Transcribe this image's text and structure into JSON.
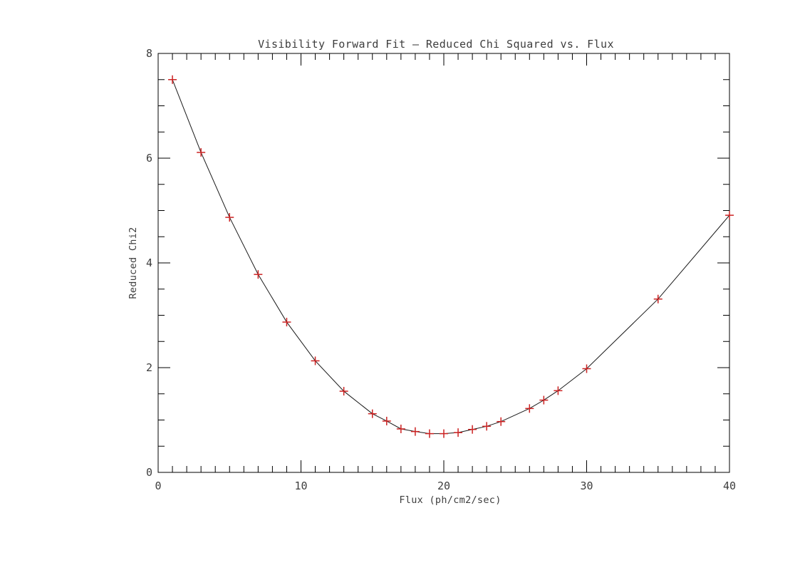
{
  "window": {
    "background_color": "#ffffff"
  },
  "chart_data": {
    "type": "line",
    "title": "Visibility Forward Fit — Reduced Chi Squared vs. Flux",
    "xlabel": "Flux (ph/cm2/sec)",
    "ylabel": "Reduced Chi2",
    "x": [
      1,
      3,
      5,
      7,
      9,
      11,
      13,
      15,
      16,
      17,
      18,
      19,
      20,
      21,
      22,
      23,
      24,
      26,
      27,
      28,
      30,
      35,
      40
    ],
    "y": [
      7.5,
      6.11,
      4.87,
      3.78,
      2.87,
      2.13,
      1.55,
      1.12,
      0.98,
      0.83,
      0.78,
      0.74,
      0.74,
      0.76,
      0.82,
      0.88,
      0.97,
      1.22,
      1.38,
      1.56,
      1.98,
      3.31,
      4.91
    ],
    "xlim": [
      0,
      40
    ],
    "ylim": [
      0,
      8
    ],
    "x_major_ticks": [
      0,
      10,
      20,
      30,
      40
    ],
    "x_major_tick_labels": [
      "0",
      "10",
      "20",
      "30",
      "40"
    ],
    "x_minor_step": 1,
    "y_major_ticks": [
      0,
      2,
      4,
      6,
      8
    ],
    "y_major_tick_labels": [
      "0",
      "2",
      "4",
      "6",
      "8"
    ],
    "y_minor_step": 0.5,
    "grid": false,
    "legend": null,
    "line_color": "#1a1a1a",
    "marker": "plus",
    "marker_color": "#cc2222",
    "axis_color": "#000000",
    "text_color": "#3d3d3d",
    "plot_background": "#ffffff"
  }
}
